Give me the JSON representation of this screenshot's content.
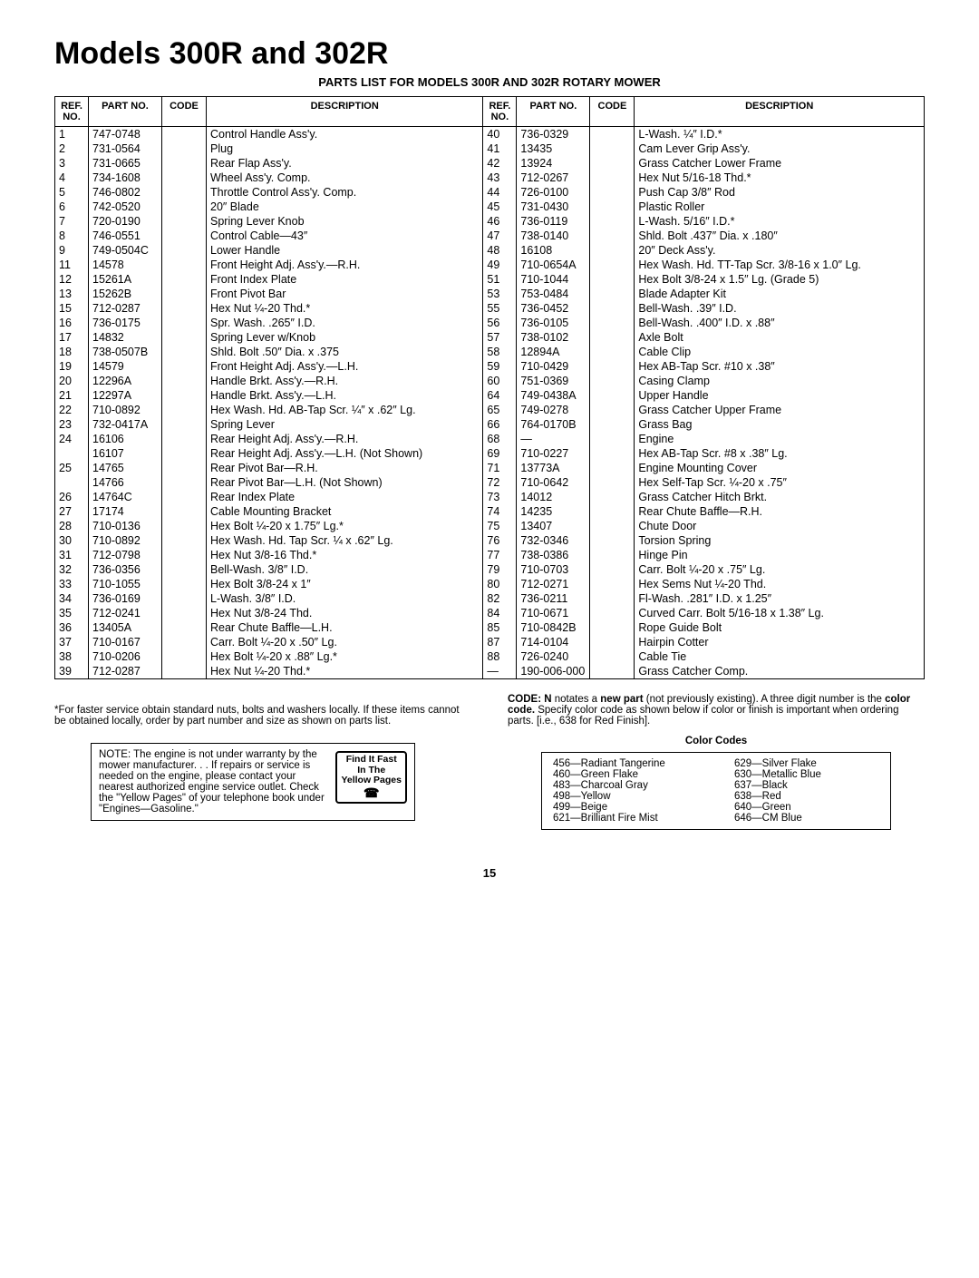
{
  "title": "Models 300R and 302R",
  "subtitle": "PARTS LIST FOR MODELS 300R AND 302R ROTARY MOWER",
  "headers": [
    "REF. NO.",
    "PART NO.",
    "CODE",
    "DESCRIPTION",
    "REF. NO.",
    "PART NO.",
    "CODE",
    "DESCRIPTION"
  ],
  "left_rows": [
    {
      "ref": "1",
      "part": "747-0748",
      "code": "",
      "desc": "Control Handle Ass'y."
    },
    {
      "ref": "2",
      "part": "731-0564",
      "code": "",
      "desc": "Plug"
    },
    {
      "ref": "3",
      "part": "731-0665",
      "code": "",
      "desc": "Rear Flap Ass'y."
    },
    {
      "ref": "4",
      "part": "734-1608",
      "code": "",
      "desc": "Wheel Ass'y. Comp."
    },
    {
      "ref": "5",
      "part": "746-0802",
      "code": "",
      "desc": "Throttle Control Ass'y. Comp."
    },
    {
      "ref": "6",
      "part": "742-0520",
      "code": "",
      "desc": "20″ Blade"
    },
    {
      "ref": "7",
      "part": "720-0190",
      "code": "",
      "desc": "Spring Lever Knob"
    },
    {
      "ref": "8",
      "part": "746-0551",
      "code": "",
      "desc": "Control Cable—43″"
    },
    {
      "ref": "9",
      "part": "749-0504C",
      "code": "",
      "desc": "Lower Handle"
    },
    {
      "ref": "11",
      "part": "14578",
      "code": "",
      "desc": "Front Height Adj. Ass'y.—R.H."
    },
    {
      "ref": "12",
      "part": "15261A",
      "code": "",
      "desc": "Front Index Plate"
    },
    {
      "ref": "13",
      "part": "15262B",
      "code": "",
      "desc": "Front Pivot Bar"
    },
    {
      "ref": "15",
      "part": "712-0287",
      "code": "",
      "desc": "Hex Nut ¼-20 Thd.*"
    },
    {
      "ref": "16",
      "part": "736-0175",
      "code": "",
      "desc": "Spr. Wash. .265″ I.D."
    },
    {
      "ref": "17",
      "part": "14832",
      "code": "",
      "desc": "Spring Lever w/Knob"
    },
    {
      "ref": "18",
      "part": "738-0507B",
      "code": "",
      "desc": "Shld. Bolt .50″ Dia. x .375"
    },
    {
      "ref": "19",
      "part": "14579",
      "code": "",
      "desc": "Front Height Adj. Ass'y.—L.H."
    },
    {
      "ref": "20",
      "part": "12296A",
      "code": "",
      "desc": "Handle Brkt. Ass'y.—R.H."
    },
    {
      "ref": "21",
      "part": "12297A",
      "code": "",
      "desc": "Handle Brkt. Ass'y.—L.H."
    },
    {
      "ref": "22",
      "part": "710-0892",
      "code": "",
      "desc": "Hex Wash. Hd. AB-Tap Scr. ¼″ x .62″ Lg."
    },
    {
      "ref": "23",
      "part": "732-0417A",
      "code": "",
      "desc": "Spring Lever"
    },
    {
      "ref": "24",
      "part": "16106",
      "code": "",
      "desc": "Rear Height Adj. Ass'y.—R.H."
    },
    {
      "ref": "",
      "part": "16107",
      "code": "",
      "desc": "Rear Height Adj. Ass'y.—L.H. (Not Shown)"
    },
    {
      "ref": "25",
      "part": "14765",
      "code": "",
      "desc": "Rear Pivot Bar—R.H."
    },
    {
      "ref": "",
      "part": "14766",
      "code": "",
      "desc": "Rear Pivot Bar—L.H. (Not Shown)"
    },
    {
      "ref": "26",
      "part": "14764C",
      "code": "",
      "desc": "Rear Index Plate"
    },
    {
      "ref": "27",
      "part": "17174",
      "code": "",
      "desc": "Cable Mounting Bracket"
    },
    {
      "ref": "28",
      "part": "710-0136",
      "code": "",
      "desc": "Hex Bolt ¼-20 x 1.75″ Lg.*"
    },
    {
      "ref": "30",
      "part": "710-0892",
      "code": "",
      "desc": "Hex Wash. Hd. Tap Scr. ¼ x .62″ Lg."
    },
    {
      "ref": "31",
      "part": "712-0798",
      "code": "",
      "desc": "Hex Nut 3/8-16 Thd.*"
    },
    {
      "ref": "32",
      "part": "736-0356",
      "code": "",
      "desc": "Bell-Wash. 3/8″ I.D."
    },
    {
      "ref": "33",
      "part": "710-1055",
      "code": "",
      "desc": "Hex Bolt 3/8-24 x 1″"
    },
    {
      "ref": "34",
      "part": "736-0169",
      "code": "",
      "desc": "L-Wash. 3/8″ I.D."
    },
    {
      "ref": "35",
      "part": "712-0241",
      "code": "",
      "desc": "Hex Nut 3/8-24 Thd."
    },
    {
      "ref": "36",
      "part": "13405A",
      "code": "",
      "desc": "Rear Chute Baffle—L.H."
    },
    {
      "ref": "37",
      "part": "710-0167",
      "code": "",
      "desc": "Carr. Bolt ¼-20 x .50″ Lg."
    },
    {
      "ref": "38",
      "part": "710-0206",
      "code": "",
      "desc": "Hex Bolt ¼-20 x .88″ Lg.*"
    },
    {
      "ref": "39",
      "part": "712-0287",
      "code": "",
      "desc": "Hex Nut ¼-20 Thd.*"
    }
  ],
  "right_rows": [
    {
      "ref": "40",
      "part": "736-0329",
      "code": "",
      "desc": "L-Wash. ¼″ I.D.*"
    },
    {
      "ref": "41",
      "part": "13435",
      "code": "",
      "desc": "Cam Lever Grip Ass'y."
    },
    {
      "ref": "42",
      "part": "13924",
      "code": "",
      "desc": "Grass Catcher Lower Frame"
    },
    {
      "ref": "43",
      "part": "712-0267",
      "code": "",
      "desc": "Hex Nut 5/16-18 Thd.*"
    },
    {
      "ref": "44",
      "part": "726-0100",
      "code": "",
      "desc": "Push Cap 3/8″ Rod"
    },
    {
      "ref": "45",
      "part": "731-0430",
      "code": "",
      "desc": "Plastic Roller"
    },
    {
      "ref": "46",
      "part": "736-0119",
      "code": "",
      "desc": "L-Wash. 5/16″ I.D.*"
    },
    {
      "ref": "47",
      "part": "738-0140",
      "code": "",
      "desc": "Shld. Bolt .437″ Dia. x .180″"
    },
    {
      "ref": "48",
      "part": "16108",
      "code": "",
      "desc": "20″ Deck Ass'y."
    },
    {
      "ref": "49",
      "part": "710-0654A",
      "code": "",
      "desc": "Hex Wash. Hd. TT-Tap Scr. 3/8-16 x 1.0″ Lg."
    },
    {
      "ref": "51",
      "part": "710-1044",
      "code": "",
      "desc": "Hex Bolt 3/8-24 x 1.5″ Lg. (Grade 5)"
    },
    {
      "ref": "53",
      "part": "753-0484",
      "code": "",
      "desc": "Blade Adapter Kit"
    },
    {
      "ref": "55",
      "part": "736-0452",
      "code": "",
      "desc": "Bell-Wash. .39″ I.D."
    },
    {
      "ref": "56",
      "part": "736-0105",
      "code": "",
      "desc": "Bell-Wash. .400″ I.D. x .88″"
    },
    {
      "ref": "57",
      "part": "738-0102",
      "code": "",
      "desc": "Axle Bolt"
    },
    {
      "ref": "58",
      "part": "12894A",
      "code": "",
      "desc": "Cable Clip"
    },
    {
      "ref": "59",
      "part": "710-0429",
      "code": "",
      "desc": "Hex AB-Tap Scr. #10 x .38″"
    },
    {
      "ref": "60",
      "part": "751-0369",
      "code": "",
      "desc": "Casing Clamp"
    },
    {
      "ref": "64",
      "part": "749-0438A",
      "code": "",
      "desc": "Upper Handle"
    },
    {
      "ref": "65",
      "part": "749-0278",
      "code": "",
      "desc": "Grass Catcher Upper Frame"
    },
    {
      "ref": "66",
      "part": "764-0170B",
      "code": "",
      "desc": "Grass Bag"
    },
    {
      "ref": "68",
      "part": "—",
      "code": "",
      "desc": "Engine"
    },
    {
      "ref": "69",
      "part": "710-0227",
      "code": "",
      "desc": "Hex AB-Tap Scr. #8 x .38″ Lg."
    },
    {
      "ref": "71",
      "part": "13773A",
      "code": "",
      "desc": "Engine Mounting Cover"
    },
    {
      "ref": "72",
      "part": "710-0642",
      "code": "",
      "desc": "Hex Self-Tap Scr. ¼-20 x .75″"
    },
    {
      "ref": "73",
      "part": "14012",
      "code": "",
      "desc": "Grass Catcher Hitch Brkt."
    },
    {
      "ref": "74",
      "part": "14235",
      "code": "",
      "desc": "Rear Chute Baffle—R.H."
    },
    {
      "ref": "75",
      "part": "13407",
      "code": "",
      "desc": "Chute Door"
    },
    {
      "ref": "76",
      "part": "732-0346",
      "code": "",
      "desc": "Torsion Spring"
    },
    {
      "ref": "77",
      "part": "738-0386",
      "code": "",
      "desc": "Hinge Pin"
    },
    {
      "ref": "79",
      "part": "710-0703",
      "code": "",
      "desc": "Carr. Bolt ¼-20 x .75″ Lg."
    },
    {
      "ref": "80",
      "part": "712-0271",
      "code": "",
      "desc": "Hex Sems Nut ¼-20 Thd."
    },
    {
      "ref": "82",
      "part": "736-0211",
      "code": "",
      "desc": "Fl-Wash. .281″ I.D. x 1.25″"
    },
    {
      "ref": "84",
      "part": "710-0671",
      "code": "",
      "desc": "Curved Carr. Bolt 5/16-18 x 1.38″ Lg."
    },
    {
      "ref": "85",
      "part": "710-0842B",
      "code": "",
      "desc": "Rope Guide Bolt"
    },
    {
      "ref": "87",
      "part": "714-0104",
      "code": "",
      "desc": "Hairpin Cotter"
    },
    {
      "ref": "88",
      "part": "726-0240",
      "code": "",
      "desc": "Cable Tie"
    },
    {
      "ref": "—",
      "part": "190-006-000",
      "code": "",
      "desc": "Grass Catcher Comp."
    }
  ],
  "footnote": "*For faster service obtain standard nuts, bolts and washers locally. If these items cannot be obtained locally, order by part number and size as shown on parts list.",
  "note_box": "NOTE: The engine is not under warranty by the mower manufacturer. . . If repairs or service is needed on the engine, please contact your nearest authorized engine service outlet. Check the \"Yellow Pages\" of your telephone book under \"Engines—Gasoline.\"",
  "findfast": [
    "Find It Fast",
    "In The",
    "Yellow Pages"
  ],
  "code_info": "CODE: N notates a new part (not previously existing). A three digit number is the color code. Specify color code as shown below if color or finish is important when ordering parts. [i.e., 638 for Red Finish].",
  "colorcodes_title": "Color Codes",
  "colorcodes_left": [
    "456—Radiant Tangerine",
    "460—Green Flake",
    "483—Charcoal Gray",
    "498—Yellow",
    "499—Beige",
    "621—Brilliant Fire Mist"
  ],
  "colorcodes_right": [
    "629—Silver Flake",
    "630—Metallic Blue",
    "637—Black",
    "638—Red",
    "640—Green",
    "646—CM Blue"
  ],
  "pagenum": "15"
}
